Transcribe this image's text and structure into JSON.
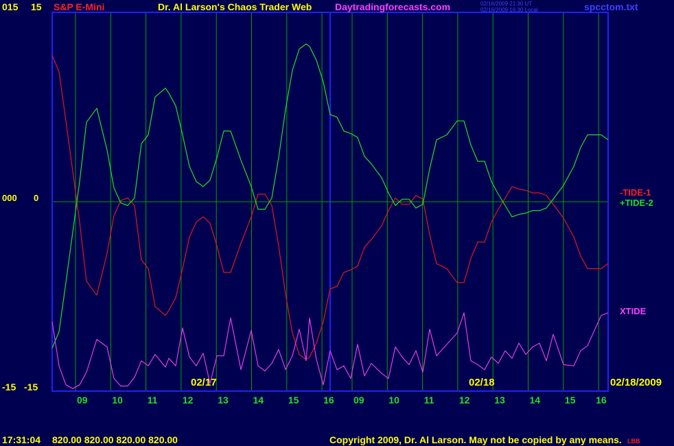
{
  "header": {
    "left_top_a": "015",
    "left_top_b": "15",
    "symbol": "S&P E-Mini",
    "title": "Dr. Al Larson's Chaos Trader Web",
    "site": "Daytradingforecasts.com",
    "stamp_ut": "02/16/2009 21:30 UT",
    "stamp_local": "02/16/2009 16:30 Local",
    "file": "spcctom.txt"
  },
  "left_axis": {
    "mid_a": "000",
    "mid_b": "0",
    "bottom_a": "-15",
    "bottom_b": "-15"
  },
  "date_labels": {
    "first": "02/17",
    "second": "02/18",
    "end": "02/18/2009"
  },
  "footer": {
    "time": "17:31:04",
    "prices": "820.00 820.00 820.00 820.00",
    "copyright": "Copyright 2009, Dr. Al Larson. May not be copied by any means.",
    "stamp": "LBB"
  },
  "colors": {
    "background": "#000050",
    "frame": "#2020ff",
    "grid": "#00a000",
    "tide1": "#e01818",
    "tide2": "#20e020",
    "xtide": "#e040e0",
    "site": "#ff40ff",
    "yellow": "#ffff00",
    "hour_green": "#20e020"
  },
  "chart_data": {
    "type": "line",
    "ylim": [
      -15,
      15
    ],
    "y_ticks": [
      "15",
      "0",
      "-15"
    ],
    "x_hour_labels": [
      "09",
      "10",
      "11",
      "12",
      "13",
      "14",
      "15",
      "16",
      "09",
      "10",
      "11",
      "12",
      "13",
      "14",
      "15",
      "16"
    ],
    "x_date_labels": [
      "02/17",
      "02/18",
      "02/18/2009"
    ],
    "x_positions": [
      0,
      2,
      4,
      6,
      8,
      10,
      13,
      16,
      18,
      20,
      22,
      24,
      26,
      28,
      30,
      33,
      34,
      36,
      38,
      40,
      42,
      44,
      46,
      48,
      50,
      52,
      55,
      58,
      60,
      62,
      64,
      66,
      68,
      70,
      72,
      74,
      75,
      77,
      79,
      81,
      83,
      85,
      87,
      89,
      91,
      93,
      96,
      98,
      100,
      102,
      104,
      106,
      108,
      110,
      112,
      115,
      118,
      120,
      122,
      124,
      126,
      128,
      130,
      132,
      134,
      136,
      138,
      140,
      142,
      144,
      146,
      149,
      152,
      154,
      156,
      158,
      160,
      162
    ],
    "series": [
      {
        "name": "-TIDE-1",
        "values": [
          11.6,
          10.3,
          6.4,
          2.4,
          -1.6,
          -6.3,
          -7.4,
          -4.1,
          -1.1,
          0.1,
          0.3,
          -0.3,
          -4.6,
          -5.3,
          -8.3,
          -9.0,
          -8.6,
          -7.6,
          -5.3,
          -2.8,
          -1.6,
          -1.2,
          -1.7,
          -3.5,
          -5.6,
          -5.6,
          -3.3,
          -1.2,
          0.6,
          0.6,
          -0.3,
          -3.5,
          -7.3,
          -10.4,
          -12.1,
          -12.5,
          -12.3,
          -11.2,
          -9.5,
          -6.9,
          -6.7,
          -5.6,
          -5.4,
          -5.1,
          -3.6,
          -3.0,
          -1.9,
          -0.7,
          0.3,
          -0.2,
          -0.2,
          0.5,
          0.2,
          -2.6,
          -4.9,
          -5.3,
          -6.4,
          -6.4,
          -4.5,
          -3.2,
          -3.2,
          -1.6,
          -0.6,
          0.3,
          1.2,
          1.0,
          0.9,
          0.7,
          0.7,
          0.5,
          -0.2,
          -1.3,
          -2.8,
          -4.3,
          -5.3,
          -5.3,
          -5.3,
          -4.9
        ]
      },
      {
        "name": "+TIDE-2",
        "values": [
          -11.6,
          -10.3,
          -6.4,
          -2.4,
          1.6,
          6.3,
          7.4,
          4.1,
          1.1,
          -0.1,
          -0.3,
          0.3,
          4.6,
          5.3,
          8.3,
          9.0,
          8.6,
          7.6,
          5.3,
          2.8,
          1.6,
          1.2,
          1.7,
          3.5,
          5.6,
          5.6,
          3.3,
          1.2,
          -0.6,
          -0.6,
          0.3,
          3.5,
          7.3,
          10.4,
          12.1,
          12.5,
          12.3,
          11.2,
          9.5,
          6.9,
          6.7,
          5.6,
          5.4,
          5.1,
          3.6,
          3.0,
          1.9,
          0.7,
          -0.3,
          0.2,
          0.2,
          -0.5,
          -0.2,
          2.6,
          4.9,
          5.3,
          6.4,
          6.4,
          4.5,
          3.2,
          3.2,
          1.6,
          0.6,
          -0.3,
          -1.2,
          -1.0,
          -0.9,
          -0.7,
          -0.7,
          -0.5,
          0.2,
          1.3,
          2.8,
          4.3,
          5.3,
          5.3,
          5.3,
          4.9
        ]
      },
      {
        "name": "XTIDE",
        "values": [
          -9.5,
          -13.0,
          -14.5,
          -14.8,
          -14.5,
          -13.5,
          -10.9,
          -11.5,
          -14.0,
          -14.6,
          -14.6,
          -13.9,
          -12.6,
          -13.0,
          -12.1,
          -13.1,
          -12.4,
          -13.0,
          -10.0,
          -12.3,
          -13.0,
          -12.0,
          -14.4,
          -12.2,
          -12.2,
          -9.2,
          -13.3,
          -10.2,
          -13.0,
          -13.4,
          -12.8,
          -11.7,
          -13.3,
          -12.2,
          -10.1,
          -12.6,
          -9.2,
          -12.5,
          -14.5,
          -11.8,
          -13.3,
          -13.0,
          -14.0,
          -11.3,
          -13.8,
          -12.8,
          -13.6,
          -14.0,
          -11.5,
          -12.3,
          -12.9,
          -11.8,
          -13.5,
          -10.1,
          -12.2,
          -11.3,
          -10.4,
          -8.8,
          -12.6,
          -12.9,
          -13.3,
          -12.3,
          -12.8,
          -11.8,
          -12.4,
          -11.2,
          -12.1,
          -11.5,
          -11.2,
          -12.6,
          -10.5,
          -12.9,
          -13.0,
          -11.8,
          -11.4,
          -10.2,
          -9.0,
          -8.8
        ]
      }
    ],
    "legend": [
      "-TIDE-1",
      "+TIDE-2",
      "XTIDE"
    ],
    "legend_placement": "right",
    "grid": true
  }
}
